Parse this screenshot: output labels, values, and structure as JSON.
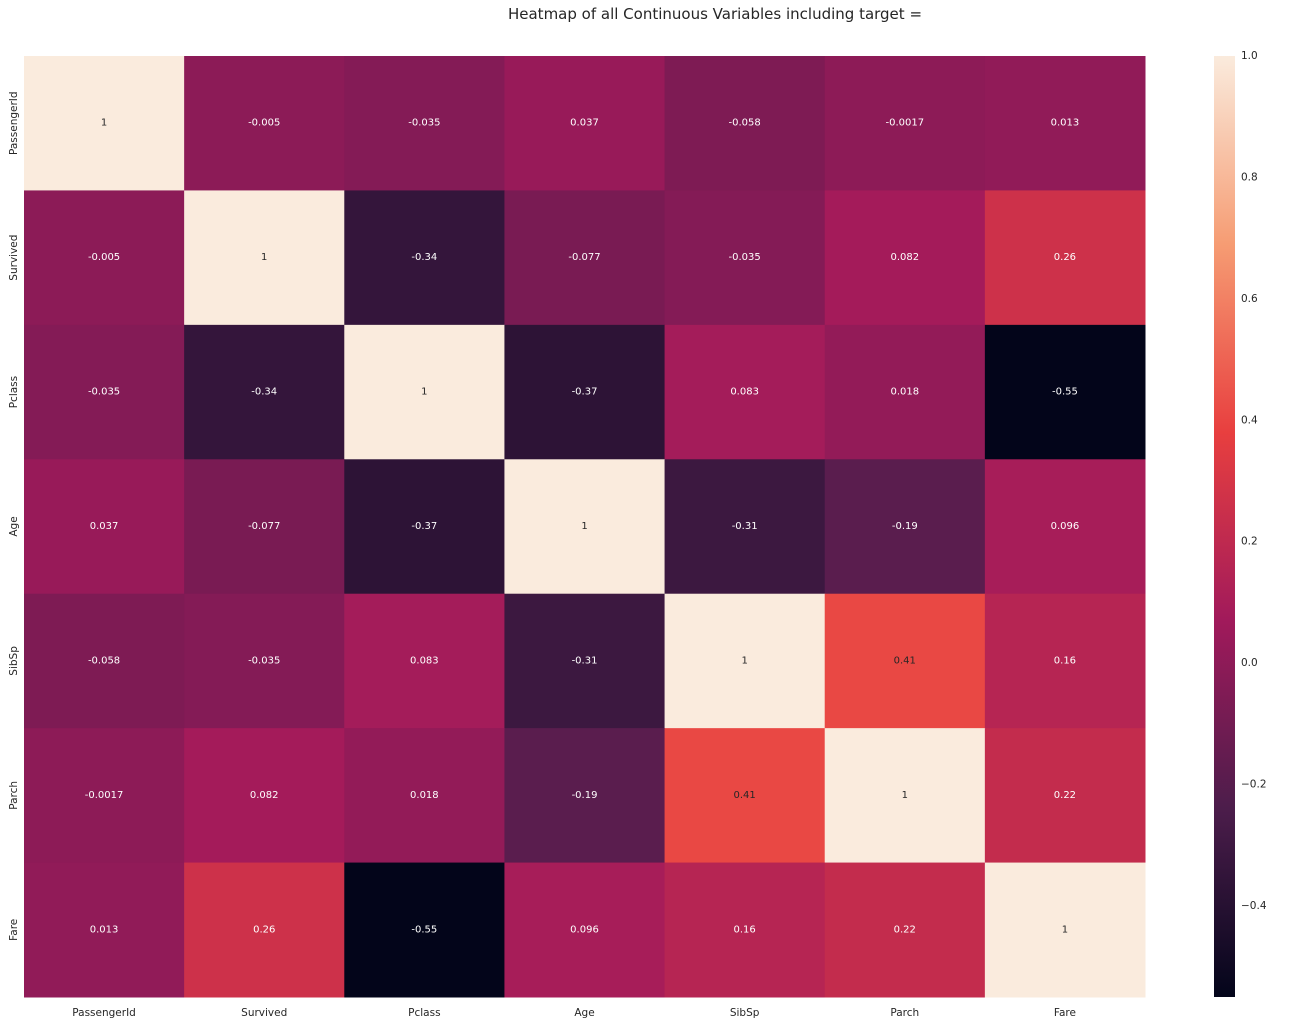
{
  "chart_data": {
    "type": "heatmap",
    "title": "Heatmap of all Continuous Variables including target =",
    "x_categories": [
      "PassengerId",
      "Survived",
      "Pclass",
      "Age",
      "SibSp",
      "Parch",
      "Fare"
    ],
    "y_categories": [
      "PassengerId",
      "Survived",
      "Pclass",
      "Age",
      "SibSp",
      "Parch",
      "Fare"
    ],
    "values": [
      [
        1,
        -0.005,
        -0.035,
        0.037,
        -0.058,
        -0.0017,
        0.013
      ],
      [
        -0.005,
        1,
        -0.34,
        -0.077,
        -0.035,
        0.082,
        0.26
      ],
      [
        -0.035,
        -0.34,
        1,
        -0.37,
        0.083,
        0.018,
        -0.55
      ],
      [
        0.037,
        -0.077,
        -0.37,
        1,
        -0.31,
        -0.19,
        0.096
      ],
      [
        -0.058,
        -0.035,
        0.083,
        -0.31,
        1,
        0.41,
        0.16
      ],
      [
        -0.0017,
        0.082,
        0.018,
        -0.19,
        0.41,
        1,
        0.22
      ],
      [
        0.013,
        0.26,
        -0.55,
        0.096,
        0.16,
        0.22,
        1
      ]
    ],
    "labels": [
      [
        "1",
        "-0.005",
        "-0.035",
        "0.037",
        "-0.058",
        "-0.0017",
        "0.013"
      ],
      [
        "-0.005",
        "1",
        "-0.34",
        "-0.077",
        "-0.035",
        "0.082",
        "0.26"
      ],
      [
        "-0.035",
        "-0.34",
        "1",
        "-0.37",
        "0.083",
        "0.018",
        "-0.55"
      ],
      [
        "0.037",
        "-0.077",
        "-0.37",
        "1",
        "-0.31",
        "-0.19",
        "0.096"
      ],
      [
        "-0.058",
        "-0.035",
        "0.083",
        "-0.31",
        "1",
        "0.41",
        "0.16"
      ],
      [
        "-0.0017",
        "0.082",
        "0.018",
        "-0.19",
        "0.41",
        "1",
        "0.22"
      ],
      [
        "0.013",
        "0.26",
        "-0.55",
        "0.096",
        "0.16",
        "0.22",
        "1"
      ]
    ],
    "colorbar": {
      "vmin": -0.55,
      "vmax": 1,
      "ticks": [
        -0.4,
        -0.2,
        0.0,
        0.2,
        0.4,
        0.6,
        0.8,
        1.0
      ],
      "tick_labels": [
        "−0.4",
        "−0.2",
        "0.0",
        "0.2",
        "0.4",
        "0.6",
        "0.8",
        "1.0"
      ]
    },
    "colormap": "rocket",
    "colormap_stops": [
      "#03051a",
      "#4c1d4b",
      "#a11a5b",
      "#e83f3f",
      "#f69c73",
      "#faebdd"
    ],
    "grid": false,
    "legend": "colorbar-right"
  }
}
